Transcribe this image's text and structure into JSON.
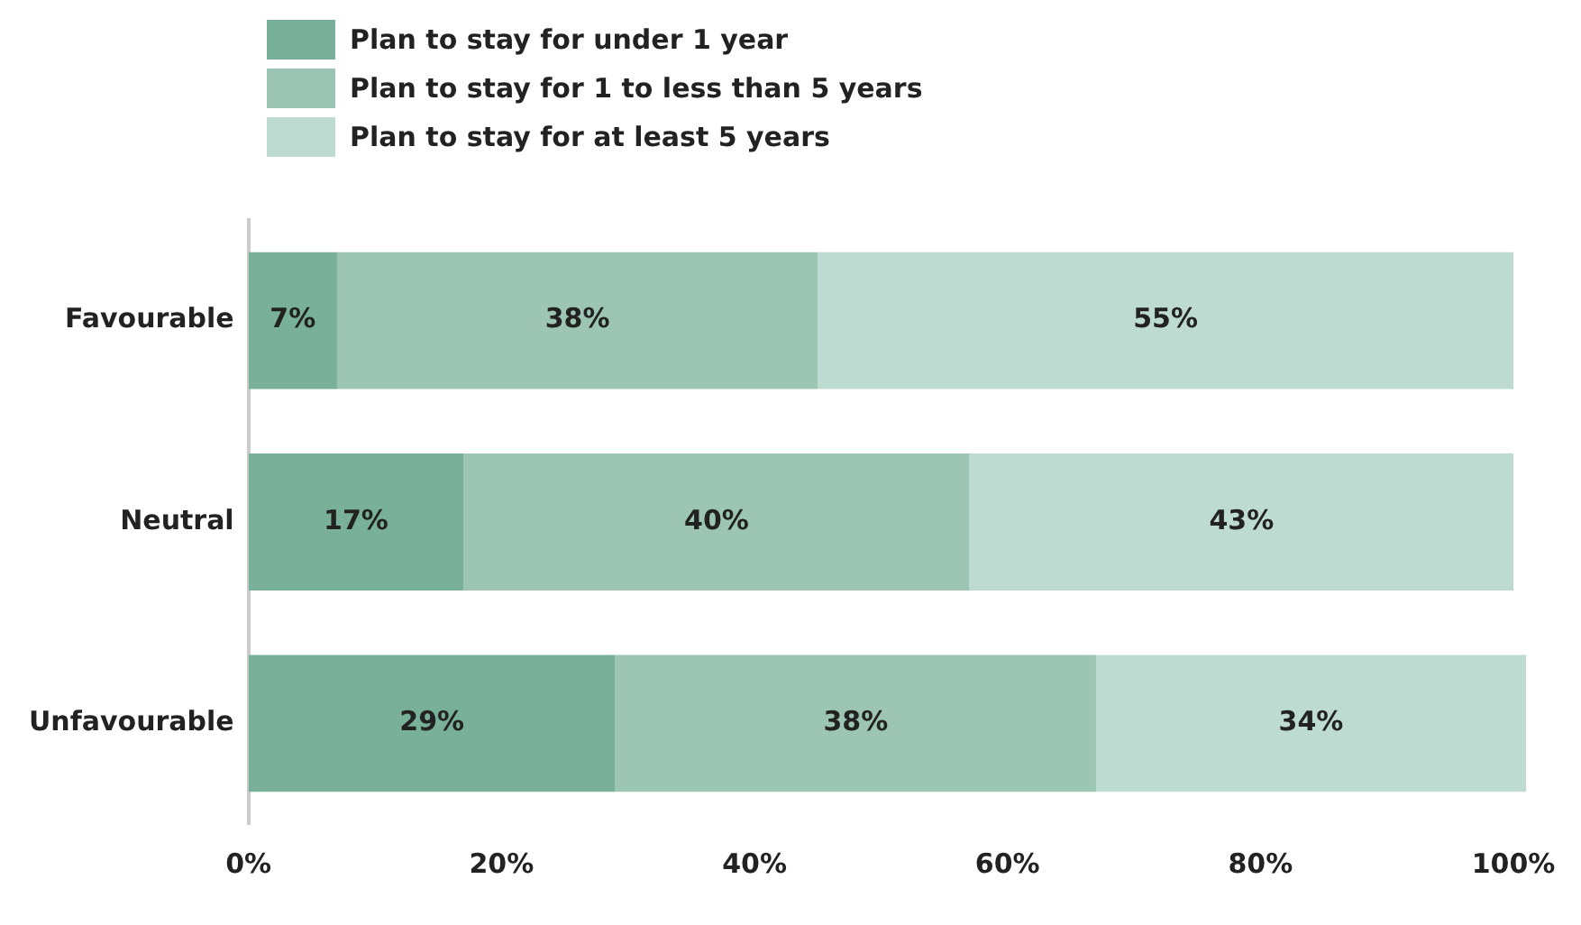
{
  "chart_data": {
    "type": "bar",
    "orientation": "horizontal",
    "stacked": true,
    "categories": [
      "Favourable",
      "Neutral",
      "Unfavourable"
    ],
    "series": [
      {
        "name": "Plan to stay for under 1 year",
        "color": "#79b09a",
        "values": [
          7,
          17,
          29
        ],
        "value_labels": [
          "7%",
          "17%",
          "29%"
        ]
      },
      {
        "name": "Plan to stay for 1 to less than 5 years",
        "color": "#9cc5b3",
        "values": [
          38,
          40,
          38
        ],
        "value_labels": [
          "38%",
          "40%",
          "38%"
        ]
      },
      {
        "name": "Plan to stay for at least 5 years",
        "color": "#bddbd0",
        "values": [
          55,
          43,
          34
        ],
        "value_labels": [
          "55%",
          "43%",
          "34%"
        ]
      }
    ],
    "xlim": [
      0,
      101
    ],
    "xticks": [
      {
        "value": 0,
        "label": "0%"
      },
      {
        "value": 20,
        "label": "20%"
      },
      {
        "value": 40,
        "label": "40%"
      },
      {
        "value": 60,
        "label": "60%"
      },
      {
        "value": 80,
        "label": "80%"
      },
      {
        "value": 100,
        "label": "100%"
      }
    ],
    "grid": false,
    "legend": "top left"
  }
}
